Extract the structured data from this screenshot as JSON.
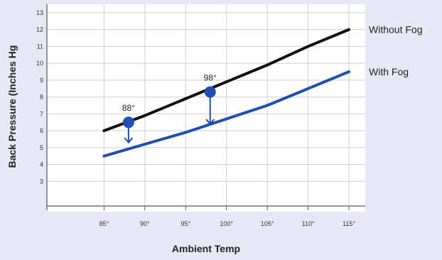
{
  "chart_data": {
    "type": "line",
    "title": "",
    "xlabel": "Ambient Temp",
    "ylabel": "Back Pressure (Inches Hg",
    "x_ticks": [
      85,
      90,
      95,
      100,
      105,
      110,
      115
    ],
    "x_tick_labels": [
      "85°",
      "90°",
      "95°",
      "100°",
      "105°",
      "110°",
      "115°"
    ],
    "y_ticks": [
      3,
      4,
      5,
      6,
      7,
      8,
      9,
      10,
      11,
      12,
      13
    ],
    "y_tick_labels": [
      "3",
      "4",
      "5",
      "6",
      "7",
      "8",
      "9",
      "10",
      "11",
      "12",
      "13"
    ],
    "xlim": [
      78,
      117
    ],
    "ylim": [
      1.2,
      13.5
    ],
    "grid": true,
    "legend": "series labels at right end of lines",
    "series": [
      {
        "name": "Without Fog",
        "color": "#111111",
        "x": [
          85,
          90,
          95,
          100,
          105,
          110,
          115
        ],
        "y": [
          6.0,
          6.9,
          7.9,
          8.9,
          9.9,
          11.0,
          12.0
        ]
      },
      {
        "name": "With Fog",
        "color": "#1f4fb3",
        "x": [
          85,
          90,
          95,
          100,
          105,
          110,
          115
        ],
        "y": [
          4.5,
          5.2,
          5.9,
          6.7,
          7.5,
          8.5,
          9.5
        ]
      }
    ],
    "annotations": [
      {
        "label": "88°",
        "x": 88,
        "y_from": 6.5,
        "y_to": 5.3,
        "color": "#1f4fb3"
      },
      {
        "label": "98°",
        "x": 98,
        "y_from": 8.3,
        "y_to": 6.4,
        "color": "#1f4fb3"
      }
    ]
  }
}
